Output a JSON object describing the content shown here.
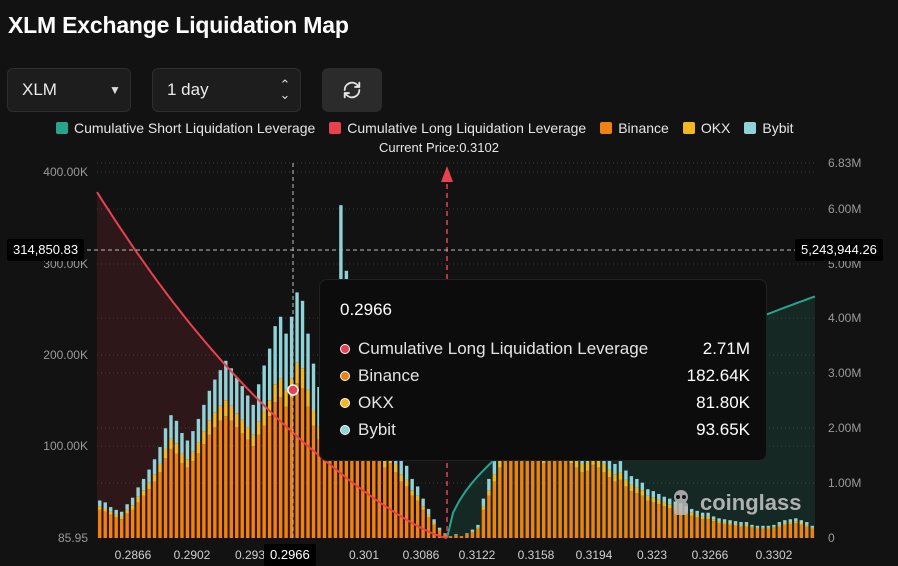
{
  "title": "XLM Exchange Liquidation Map",
  "controls": {
    "symbol": "XLM",
    "range": "1 day"
  },
  "colors": {
    "short": "#26a58c",
    "long": "#e8414f",
    "binance": "#f0820f",
    "okx": "#f3b81d",
    "bybit": "#8fd3d8"
  },
  "legend": [
    {
      "label": "Cumulative Short Liquidation Leverage",
      "color": "#26a58c"
    },
    {
      "label": "Cumulative Long Liquidation Leverage",
      "color": "#e8414f"
    },
    {
      "label": "Binance",
      "color": "#f0820f"
    },
    {
      "label": "OKX",
      "color": "#f3b81d"
    },
    {
      "label": "Bybit",
      "color": "#8fd3d8"
    }
  ],
  "current_price_label": "Current Price:0.3102",
  "crosshair": {
    "left_value": "314,850.83",
    "right_value": "5,243,944.26",
    "x_value": "0.2966"
  },
  "tooltip": {
    "price": "0.2966",
    "rows": [
      {
        "name": "Cumulative Long Liquidation Leverage",
        "value": "2.71M",
        "color": "#e8414f"
      },
      {
        "name": "Binance",
        "value": "182.64K",
        "color": "#f0820f"
      },
      {
        "name": "OKX",
        "value": "81.80K",
        "color": "#f3b81d"
      },
      {
        "name": "Bybit",
        "value": "93.65K",
        "color": "#8fd3d8"
      }
    ]
  },
  "watermark": "coinglass",
  "chart_data": {
    "type": "bar",
    "x_ticks": [
      "0.2866",
      "0.2902",
      "0.293",
      "0.2966",
      "0.301",
      "0.3086",
      "0.3122",
      "0.3158",
      "0.3194",
      "0.323",
      "0.3266",
      "0.3302"
    ],
    "y_left_ticks": [
      "400.00K",
      "300.00K",
      "200.00K",
      "100.00K",
      "85.95"
    ],
    "y_right_ticks": [
      "6.83M",
      "6.00M",
      "5.00M",
      "4.00M",
      "3.00M",
      "2.00M",
      "1.00M",
      "0"
    ],
    "y_left_range": [
      0,
      400000
    ],
    "y_right_range": [
      0,
      6830000
    ],
    "current_price": 0.3102,
    "series": [
      {
        "name": "Binance",
        "values": [
          30,
          28,
          25,
          22,
          20,
          26,
          30,
          38,
          45,
          52,
          60,
          70,
          85,
          95,
          90,
          80,
          75,
          82,
          90,
          100,
          110,
          118,
          125,
          130,
          125,
          118,
          112,
          105,
          98,
          110,
          120,
          130,
          145,
          150,
          140,
          150,
          165,
          160,
          140,
          120,
          105,
          95,
          120,
          150,
          180,
          190,
          170,
          150,
          130,
          110,
          95,
          85,
          75,
          80,
          70,
          60,
          55,
          45,
          40,
          30,
          22,
          14,
          8,
          4,
          2,
          3,
          2,
          4,
          6,
          10,
          30,
          45,
          60,
          75,
          85,
          90,
          95,
          100,
          95,
          90,
          85,
          80,
          90,
          95,
          92,
          85,
          80,
          75,
          70,
          72,
          78,
          75,
          70,
          65,
          60,
          62,
          55,
          50,
          48,
          45,
          40,
          38,
          36,
          34,
          32,
          30,
          28,
          26,
          24,
          22,
          20,
          20,
          18,
          16,
          15,
          14,
          13,
          12,
          12,
          11,
          10,
          10,
          10,
          11,
          12,
          14,
          15,
          16,
          14,
          12,
          10
        ]
      },
      {
        "name": "OKX",
        "values": [
          4,
          4,
          3,
          3,
          3,
          4,
          5,
          6,
          6,
          7,
          8,
          9,
          10,
          11,
          11,
          10,
          9,
          10,
          12,
          14,
          15,
          16,
          16,
          17,
          16,
          15,
          14,
          13,
          12,
          14,
          16,
          17,
          19,
          20,
          18,
          20,
          22,
          21,
          18,
          16,
          14,
          12,
          16,
          20,
          82,
          25,
          22,
          20,
          17,
          14,
          12,
          11,
          10,
          10,
          9,
          8,
          7,
          6,
          5,
          4,
          3,
          2,
          1,
          0,
          0,
          0,
          0,
          0,
          1,
          1,
          4,
          6,
          8,
          10,
          11,
          12,
          12,
          13,
          12,
          12,
          11,
          10,
          12,
          12,
          12,
          11,
          10,
          10,
          9,
          9,
          10,
          10,
          9,
          8,
          8,
          8,
          7,
          7,
          6,
          6,
          5,
          5,
          5,
          4,
          4,
          4,
          4,
          3,
          3,
          3,
          3,
          3,
          2,
          2,
          2,
          2,
          2,
          2,
          2,
          1,
          1,
          1,
          1,
          1,
          2,
          2,
          2,
          2,
          2,
          2,
          1
        ]
      },
      {
        "name": "Bybit",
        "values": [
          6,
          6,
          5,
          5,
          5,
          6,
          8,
          10,
          12,
          14,
          16,
          18,
          22,
          25,
          24,
          22,
          20,
          22,
          25,
          28,
          32,
          35,
          38,
          42,
          40,
          38,
          36,
          34,
          32,
          40,
          48,
          55,
          62,
          66,
          60,
          66,
          75,
          72,
          60,
          50,
          42,
          36,
          45,
          55,
          93,
          70,
          60,
          50,
          40,
          32,
          28,
          24,
          20,
          22,
          20,
          18,
          15,
          12,
          10,
          8,
          6,
          4,
          2,
          1,
          0,
          1,
          0,
          1,
          2,
          3,
          8,
          12,
          14,
          16,
          18,
          20,
          22,
          24,
          22,
          20,
          18,
          16,
          18,
          20,
          19,
          17,
          16,
          15,
          14,
          14,
          15,
          14,
          13,
          12,
          11,
          12,
          10,
          9,
          9,
          8,
          7,
          7,
          6,
          6,
          6,
          5,
          5,
          5,
          4,
          4,
          4,
          4,
          3,
          3,
          3,
          3,
          3,
          3,
          3,
          2,
          2,
          2,
          2,
          2,
          3,
          3,
          3,
          3,
          3,
          3,
          2
        ]
      }
    ],
    "long_leverage": {
      "name": "Cumulative Long Liquidation Leverage",
      "from": 6.3,
      "to": 0
    },
    "short_leverage": {
      "name": "Cumulative Short Liquidation Leverage",
      "from": 0,
      "to": 4.4
    }
  }
}
